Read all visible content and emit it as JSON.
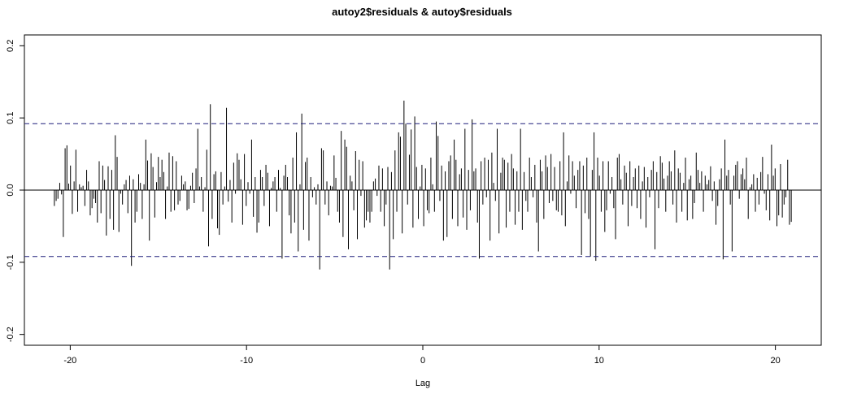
{
  "chart_data": {
    "type": "bar",
    "title": "autoy2$residuals & autoy$residuals",
    "xlabel": "Lag",
    "ylabel": "",
    "xlim": [
      -22.6,
      22.6
    ],
    "ylim": [
      -0.215,
      0.215
    ],
    "x_ticks": [
      -20,
      -10,
      0,
      10,
      20
    ],
    "x_tick_labels": [
      "-20",
      "-10",
      "0",
      "10",
      "20"
    ],
    "y_ticks": [
      -0.2,
      -0.1,
      0.0,
      0.1,
      0.2
    ],
    "y_tick_labels": [
      "-0.2",
      "-0.1",
      "0.0",
      "0.1",
      "0.2"
    ],
    "zero_line": 0,
    "confidence_bounds": [
      0.092,
      -0.092
    ],
    "grid": false,
    "legend": "none",
    "colors": {
      "bars": "#000000",
      "bounds": "#1f1f7a",
      "axes": "#000000"
    },
    "lag_start": -20.9,
    "lag_end": 20.9,
    "values": [
      -0.022,
      -0.015,
      -0.012,
      0.01,
      -0.006,
      -0.065,
      0.058,
      0.062,
      0.009,
      0.034,
      -0.033,
      0.012,
      0.056,
      -0.03,
      0.008,
      0.004,
      0.006,
      -0.022,
      0.028,
      0.012,
      -0.035,
      -0.025,
      -0.012,
      -0.018,
      -0.045,
      0.04,
      -0.032,
      0.034,
      0.014,
      -0.063,
      0.033,
      -0.04,
      0.028,
      -0.055,
      0.076,
      0.046,
      -0.058,
      -0.005,
      -0.02,
      0.008,
      0.014,
      -0.032,
      0.02,
      -0.105,
      0.015,
      -0.045,
      -0.03,
      0.022,
      0.01,
      -0.04,
      0.008,
      0.07,
      0.041,
      -0.07,
      0.051,
      0.032,
      -0.038,
      0.011,
      0.046,
      0.018,
      0.042,
      0.025,
      -0.04,
      0.005,
      0.052,
      -0.03,
      0.047,
      -0.028,
      0.04,
      -0.02,
      -0.015,
      0.02,
      0.008,
      0.012,
      -0.028,
      -0.026,
      0.006,
      0.024,
      -0.018,
      0.03,
      0.085,
      0.005,
      0.018,
      -0.03,
      0.004,
      0.056,
      -0.078,
      0.119,
      -0.04,
      0.022,
      0.026,
      -0.053,
      -0.062,
      0.025,
      -0.02,
      0.005,
      0.114,
      -0.016,
      0.014,
      -0.045,
      0.038,
      -0.005,
      0.051,
      0.042,
      0.015,
      -0.048,
      0.05,
      -0.022,
      0.011,
      -0.005,
      0.07,
      -0.037,
      0.018,
      -0.059,
      -0.045,
      0.028,
      0.018,
      -0.022,
      0.035,
      0.024,
      -0.05,
      0.003,
      0.012,
      0.018,
      -0.03,
      0.028,
      0.003,
      -0.095,
      0.02,
      0.035,
      0.018,
      -0.035,
      -0.06,
      0.045,
      -0.045,
      0.08,
      -0.085,
      0.008,
      0.106,
      -0.055,
      0.039,
      0.045,
      -0.07,
      0.018,
      -0.01,
      0.004,
      -0.02,
      0.008,
      -0.11,
      0.058,
      0.055,
      -0.02,
      0.012,
      -0.035,
      0.006,
      0.005,
      0.048,
      0.017,
      -0.03,
      -0.045,
      0.082,
      -0.065,
      0.07,
      0.06,
      -0.082,
      0.02,
      0.012,
      -0.028,
      0.054,
      -0.068,
      0.042,
      -0.008,
      0.04,
      -0.052,
      -0.042,
      -0.03,
      -0.045,
      -0.03,
      0.012,
      0.016,
      -0.008,
      0.034,
      -0.03,
      0.03,
      -0.05,
      -0.02,
      0.032,
      -0.11,
      0.025,
      -0.068,
      0.055,
      -0.03,
      0.08,
      0.074,
      -0.06,
      0.124,
      0.092,
      -0.02,
      0.049,
      0.084,
      -0.052,
      0.102,
      0.032,
      -0.04,
      0.005,
      0.035,
      -0.05,
      0.03,
      -0.028,
      -0.032,
      0.045,
      0.008,
      -0.03,
      0.095,
      0.075,
      -0.015,
      0.034,
      -0.07,
      0.026,
      -0.065,
      0.04,
      0.048,
      -0.04,
      0.07,
      0.042,
      -0.05,
      0.022,
      0.03,
      -0.038,
      0.085,
      -0.055,
      0.028,
      -0.028,
      0.098,
      0.026,
      0.03,
      -0.045,
      -0.095,
      0.04,
      -0.02,
      0.045,
      -0.01,
      0.042,
      -0.07,
      0.052,
      0.01,
      -0.015,
      0.085,
      -0.06,
      0.024,
      0.045,
      0.042,
      -0.052,
      0.038,
      -0.03,
      0.05,
      0.03,
      -0.048,
      0.026,
      -0.03,
      0.085,
      -0.055,
      0.025,
      -0.015,
      -0.03,
      0.045,
      0.018,
      -0.01,
      0.035,
      -0.045,
      -0.085,
      0.042,
      0.026,
      -0.04,
      0.048,
      0.032,
      -0.018,
      0.05,
      -0.015,
      0.032,
      -0.028,
      -0.03,
      0.04,
      -0.035,
      0.08,
      -0.05,
      0.012,
      0.048,
      -0.005,
      0.04,
      0.02,
      -0.025,
      0.028,
      0.04,
      -0.09,
      0.034,
      -0.032,
      0.045,
      -0.04,
      -0.092,
      0.028,
      0.08,
      -0.098,
      0.045,
      0.02,
      -0.03,
      0.04,
      -0.058,
      -0.028,
      0.04,
      -0.005,
      0.018,
      -0.025,
      -0.068,
      0.045,
      0.05,
      0.015,
      -0.02,
      0.034,
      0.024,
      -0.05,
      0.04,
      -0.022,
      0.018,
      0.03,
      -0.025,
      0.034,
      -0.04,
      0.012,
      0.032,
      -0.052,
      0.018,
      -0.01,
      0.028,
      0.04,
      -0.082,
      0.025,
      -0.025,
      0.047,
      0.038,
      0.016,
      -0.03,
      0.02,
      0.04,
      0.026,
      -0.02,
      0.055,
      -0.045,
      0.03,
      0.024,
      -0.03,
      0.01,
      0.045,
      -0.042,
      0.015,
      0.02,
      -0.04,
      -0.018,
      0.052,
      0.028,
      0.01,
      0.026,
      -0.03,
      0.02,
      0.008,
      0.014,
      0.033,
      -0.015,
      0.012,
      -0.048,
      -0.022,
      0.015,
      0.03,
      -0.096,
      0.07,
      0.02,
      0.028,
      -0.02,
      -0.085,
      0.02,
      0.035,
      0.04,
      -0.012,
      0.022,
      0.03,
      0.015,
      0.045,
      -0.04,
      0.004,
      0.008,
      0.022,
      -0.03,
      0.017,
      -0.02,
      0.025,
      0.046,
      -0.005,
      -0.028,
      0.022,
      -0.042,
      0.063,
      0.02,
      0.03,
      -0.05,
      -0.035,
      0.036,
      -0.038,
      -0.02,
      -0.01,
      0.042,
      -0.048,
      -0.044
    ]
  }
}
